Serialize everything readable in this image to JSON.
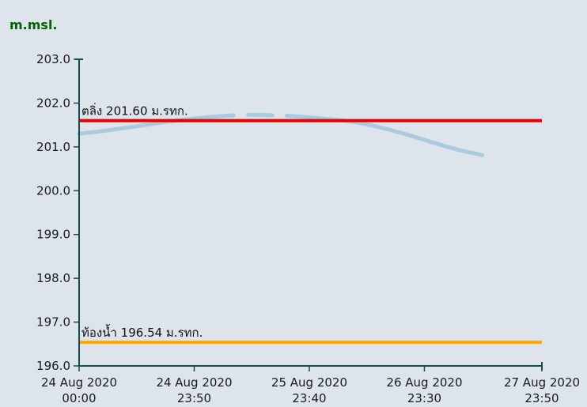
{
  "page_background": "#dde4ec",
  "chart_data": {
    "type": "line",
    "title": "",
    "ylabel": "m.msl.",
    "ylabel_color": "#006400",
    "ylim": [
      196.0,
      203.0
    ],
    "y_ticks": [
      "203.0",
      "202.0",
      "201.0",
      "200.0",
      "199.0",
      "198.0",
      "197.0",
      "196.0"
    ],
    "x_range_hours": [
      0,
      95.833
    ],
    "x_ticks": [
      {
        "hours": 0,
        "label": [
          "24 Aug 2020",
          "00:00"
        ]
      },
      {
        "hours": 23.833,
        "label": [
          "24 Aug 2020",
          "23:50"
        ]
      },
      {
        "hours": 47.667,
        "label": [
          "25 Aug 2020",
          "23:40"
        ]
      },
      {
        "hours": 71.5,
        "label": [
          "26 Aug 2020",
          "23:30"
        ]
      },
      {
        "hours": 95.833,
        "label": [
          "27 Aug 2020",
          "23:50"
        ]
      }
    ],
    "axis_color": "#114e4e",
    "tick_label_color": "#1a1a1a",
    "annotation_color": "#111111",
    "grid": false,
    "legend": "none",
    "thresholds": [
      {
        "name": "bank-level",
        "label": "ตลิ่ง 201.60 ม.รทก.",
        "value": 201.6,
        "color": "#e60000",
        "width": 4
      },
      {
        "name": "river-bed",
        "label": "ท้องน้ำ 196.54 ม.รทก.",
        "value": 196.54,
        "color": "#ffa800",
        "width": 4
      }
    ],
    "series": [
      {
        "name": "water-level",
        "color": "#accadf",
        "width": 5,
        "segments": [
          [
            [
              0,
              201.3
            ],
            [
              4,
              201.35
            ],
            [
              8,
              201.41
            ],
            [
              12,
              201.47
            ],
            [
              16,
              201.54
            ],
            [
              20,
              201.6
            ],
            [
              24,
              201.65
            ],
            [
              28,
              201.69
            ],
            [
              32,
              201.72
            ]
          ],
          [
            [
              35,
              201.73
            ],
            [
              38,
              201.73
            ],
            [
              40,
              201.72
            ]
          ],
          [
            [
              43,
              201.71
            ],
            [
              46,
              201.69
            ],
            [
              49,
              201.66
            ],
            [
              52,
              201.63
            ],
            [
              55,
              201.6
            ],
            [
              58,
              201.55
            ],
            [
              61,
              201.48
            ],
            [
              64,
              201.4
            ],
            [
              67,
              201.31
            ],
            [
              70,
              201.21
            ],
            [
              73,
              201.11
            ],
            [
              76,
              201.01
            ],
            [
              79,
              200.92
            ],
            [
              81.5,
              200.86
            ],
            [
              83.5,
              200.81
            ]
          ]
        ]
      }
    ]
  }
}
